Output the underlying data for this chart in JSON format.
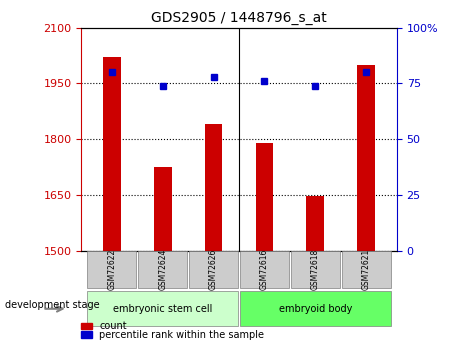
{
  "title": "GDS2905 / 1448796_s_at",
  "samples": [
    "GSM72622",
    "GSM72624",
    "GSM72626",
    "GSM72616",
    "GSM72618",
    "GSM72621"
  ],
  "counts": [
    2020,
    1725,
    1840,
    1790,
    1648,
    2000
  ],
  "percentiles": [
    80,
    74,
    78,
    76,
    74,
    80
  ],
  "ylim_left": [
    1500,
    2100
  ],
  "ylim_right": [
    0,
    100
  ],
  "yticks_left": [
    1500,
    1650,
    1800,
    1950,
    2100
  ],
  "yticks_right": [
    0,
    25,
    50,
    75,
    100
  ],
  "bar_color": "#cc0000",
  "dot_color": "#0000cc",
  "groups": [
    {
      "label": "embryonic stem cell",
      "indices": [
        0,
        1,
        2
      ],
      "color": "#ccffcc"
    },
    {
      "label": "embryoid body",
      "indices": [
        3,
        4,
        5
      ],
      "color": "#66ff66"
    }
  ],
  "dev_stage_label": "development stage",
  "legend_count_label": "count",
  "legend_percentile_label": "percentile rank within the sample",
  "bg_color": "#ffffff",
  "plot_bg": "#ffffff",
  "grid_color": "#000000",
  "tick_color_left": "#cc0000",
  "tick_color_right": "#0000cc",
  "sample_box_color": "#cccccc"
}
